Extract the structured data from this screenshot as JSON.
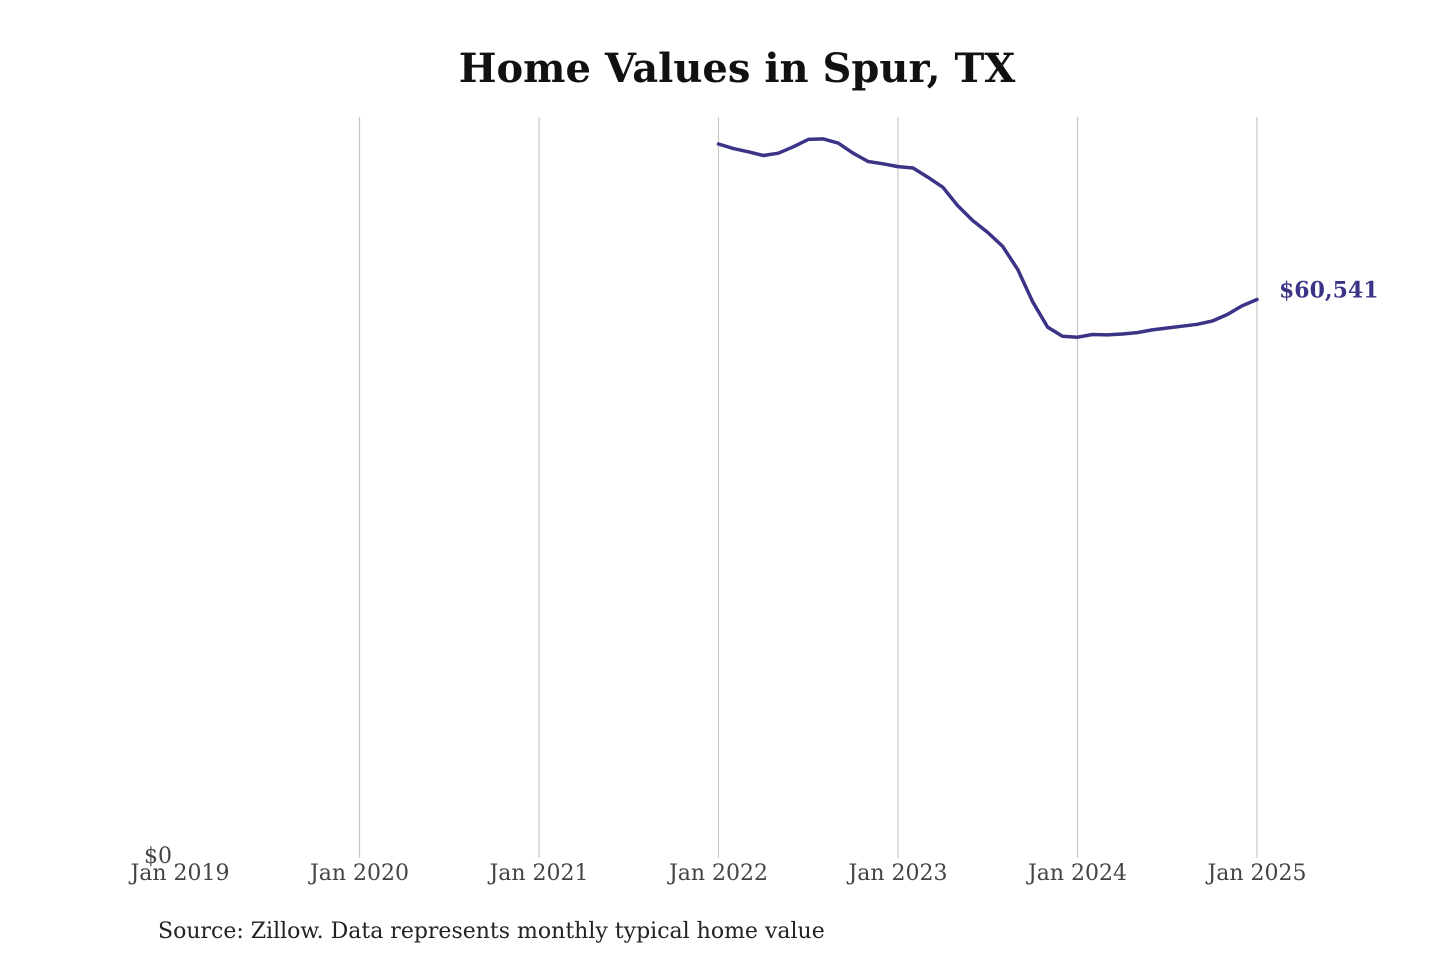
{
  "chart_data": {
    "type": "line",
    "title": "Home Values in Spur, TX",
    "xlabel": "",
    "ylabel": "",
    "x_ticks": [
      "Jan 2019",
      "Jan 2020",
      "Jan 2021",
      "Jan 2022",
      "Jan 2023",
      "Jan 2024",
      "Jan 2025"
    ],
    "y_ticks": [
      "$0"
    ],
    "xlim": [
      "2019-01",
      "2025-06"
    ],
    "ylim": [
      0,
      80000
    ],
    "grid": "vertical",
    "line_color": "#3b3486",
    "end_label": "$60,541",
    "series": [
      {
        "name": "",
        "x": [
          "2022-01",
          "2022-02",
          "2022-03",
          "2022-04",
          "2022-05",
          "2022-06",
          "2022-07",
          "2022-08",
          "2022-09",
          "2022-10",
          "2022-11",
          "2022-12",
          "2023-01",
          "2023-02",
          "2023-03",
          "2023-04",
          "2023-05",
          "2023-06",
          "2023-07",
          "2023-08",
          "2023-09",
          "2023-10",
          "2023-11",
          "2023-12",
          "2024-01",
          "2024-02",
          "2024-03",
          "2024-04",
          "2024-05",
          "2024-06",
          "2024-07",
          "2024-08",
          "2024-09",
          "2024-10",
          "2024-11",
          "2024-12",
          "2025-01"
        ],
        "values": [
          77400,
          76900,
          76550,
          76150,
          76400,
          77100,
          77900,
          77950,
          77500,
          76400,
          75500,
          75250,
          74950,
          74800,
          73800,
          72700,
          70700,
          69100,
          67800,
          66300,
          63800,
          60300,
          57550,
          56550,
          56450,
          56750,
          56700,
          56800,
          56950,
          57250,
          57450,
          57650,
          57850,
          58200,
          58900,
          59850,
          60541
        ]
      }
    ]
  },
  "source": "Source: Zillow. Data represents monthly typical home value"
}
